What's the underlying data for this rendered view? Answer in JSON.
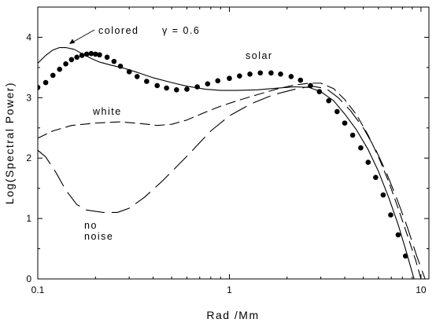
{
  "chart_data": {
    "type": "line",
    "xlabel": "Rad /Mm",
    "ylabel": "Log(Spectral Power)",
    "xscale": "log",
    "xlim": [
      0.1,
      11
    ],
    "ylim": [
      0,
      4.5
    ],
    "x_ticks": [
      {
        "value": 0.1,
        "label": "0.1"
      },
      {
        "value": 1,
        "label": "1"
      },
      {
        "value": 10,
        "label": "10"
      }
    ],
    "y_ticks": [
      {
        "value": 0,
        "label": "0"
      },
      {
        "value": 1,
        "label": "1"
      },
      {
        "value": 2,
        "label": "2"
      },
      {
        "value": 3,
        "label": "3"
      },
      {
        "value": 4,
        "label": "4"
      }
    ],
    "grid": false,
    "legend": "none",
    "series": [
      {
        "name": "solar",
        "style": "dots",
        "points": [
          [
            0.1,
            3.17
          ],
          [
            0.11,
            3.25
          ],
          [
            0.12,
            3.37
          ],
          [
            0.13,
            3.47
          ],
          [
            0.14,
            3.56
          ],
          [
            0.15,
            3.63
          ],
          [
            0.16,
            3.67
          ],
          [
            0.17,
            3.7
          ],
          [
            0.18,
            3.72
          ],
          [
            0.19,
            3.73
          ],
          [
            0.2,
            3.72
          ],
          [
            0.21,
            3.71
          ],
          [
            0.23,
            3.67
          ],
          [
            0.25,
            3.6
          ],
          [
            0.27,
            3.52
          ],
          [
            0.3,
            3.43
          ],
          [
            0.33,
            3.35
          ],
          [
            0.37,
            3.27
          ],
          [
            0.42,
            3.2
          ],
          [
            0.47,
            3.16
          ],
          [
            0.53,
            3.13
          ],
          [
            0.6,
            3.14
          ],
          [
            0.68,
            3.18
          ],
          [
            0.77,
            3.23
          ],
          [
            0.87,
            3.28
          ],
          [
            1.0,
            3.32
          ],
          [
            1.13,
            3.36
          ],
          [
            1.28,
            3.39
          ],
          [
            1.45,
            3.41
          ],
          [
            1.65,
            3.41
          ],
          [
            1.85,
            3.39
          ],
          [
            2.1,
            3.35
          ],
          [
            2.35,
            3.29
          ],
          [
            2.65,
            3.2
          ],
          [
            2.95,
            3.1
          ],
          [
            3.3,
            2.95
          ],
          [
            3.65,
            2.77
          ],
          [
            4.0,
            2.58
          ],
          [
            4.4,
            2.38
          ],
          [
            4.85,
            2.17
          ],
          [
            5.3,
            1.93
          ],
          [
            5.8,
            1.68
          ],
          [
            6.35,
            1.39
          ],
          [
            6.95,
            1.06
          ],
          [
            7.6,
            0.73
          ],
          [
            8.3,
            0.38
          ]
        ]
      },
      {
        "name": "colored γ = 0.6",
        "style": "solid",
        "points": [
          [
            0.1,
            3.57
          ],
          [
            0.11,
            3.7
          ],
          [
            0.12,
            3.79
          ],
          [
            0.13,
            3.83
          ],
          [
            0.14,
            3.83
          ],
          [
            0.155,
            3.8
          ],
          [
            0.17,
            3.73
          ],
          [
            0.19,
            3.65
          ],
          [
            0.21,
            3.59
          ],
          [
            0.24,
            3.54
          ],
          [
            0.28,
            3.49
          ],
          [
            0.33,
            3.42
          ],
          [
            0.4,
            3.33
          ],
          [
            0.5,
            3.25
          ],
          [
            0.6,
            3.19
          ],
          [
            0.75,
            3.14
          ],
          [
            0.9,
            3.12
          ],
          [
            1.1,
            3.12
          ],
          [
            1.4,
            3.13
          ],
          [
            1.8,
            3.16
          ],
          [
            2.2,
            3.18
          ],
          [
            2.6,
            3.17
          ],
          [
            3.0,
            3.1
          ],
          [
            3.5,
            2.95
          ],
          [
            4.0,
            2.73
          ],
          [
            4.6,
            2.47
          ],
          [
            5.3,
            2.14
          ],
          [
            6.0,
            1.78
          ],
          [
            6.8,
            1.34
          ],
          [
            7.6,
            0.9
          ],
          [
            8.4,
            0.44
          ],
          [
            9.2,
            0.0
          ]
        ]
      },
      {
        "name": "white",
        "style": "dashed",
        "points": [
          [
            0.1,
            2.33
          ],
          [
            0.12,
            2.45
          ],
          [
            0.15,
            2.54
          ],
          [
            0.2,
            2.58
          ],
          [
            0.27,
            2.6
          ],
          [
            0.35,
            2.57
          ],
          [
            0.42,
            2.54
          ],
          [
            0.5,
            2.56
          ],
          [
            0.6,
            2.63
          ],
          [
            0.75,
            2.76
          ],
          [
            0.9,
            2.86
          ],
          [
            1.1,
            2.95
          ],
          [
            1.4,
            3.05
          ],
          [
            1.8,
            3.15
          ],
          [
            2.2,
            3.21
          ],
          [
            2.6,
            3.24
          ],
          [
            3.0,
            3.24
          ],
          [
            3.5,
            3.15
          ],
          [
            4.0,
            2.97
          ],
          [
            4.6,
            2.72
          ],
          [
            5.3,
            2.38
          ],
          [
            6.0,
            2.02
          ],
          [
            6.8,
            1.6
          ],
          [
            7.6,
            1.17
          ],
          [
            8.5,
            0.72
          ],
          [
            9.4,
            0.3
          ],
          [
            10.0,
            0.0
          ]
        ]
      },
      {
        "name": "no noise",
        "style": "long-dashed",
        "points": [
          [
            0.1,
            2.13
          ],
          [
            0.11,
            2.02
          ],
          [
            0.125,
            1.75
          ],
          [
            0.14,
            1.47
          ],
          [
            0.16,
            1.23
          ],
          [
            0.18,
            1.14
          ],
          [
            0.22,
            1.1
          ],
          [
            0.26,
            1.1
          ],
          [
            0.3,
            1.17
          ],
          [
            0.36,
            1.35
          ],
          [
            0.45,
            1.63
          ],
          [
            0.6,
            2.03
          ],
          [
            0.8,
            2.45
          ],
          [
            1.0,
            2.7
          ],
          [
            1.3,
            2.9
          ],
          [
            1.7,
            3.05
          ],
          [
            2.2,
            3.14
          ],
          [
            2.7,
            3.19
          ],
          [
            3.2,
            3.15
          ],
          [
            3.7,
            3.0
          ],
          [
            4.3,
            2.78
          ],
          [
            5.0,
            2.5
          ],
          [
            5.8,
            2.14
          ],
          [
            6.6,
            1.76
          ],
          [
            7.5,
            1.32
          ],
          [
            8.5,
            0.85
          ],
          [
            9.5,
            0.38
          ],
          [
            10.5,
            0.0
          ]
        ]
      }
    ],
    "annotations": {
      "colored": {
        "label": "colored",
        "gamma_label": "γ = 0.6"
      },
      "solar": "solar",
      "white": "white",
      "no_noise_line1": "no",
      "no_noise_line2": "noise"
    }
  }
}
